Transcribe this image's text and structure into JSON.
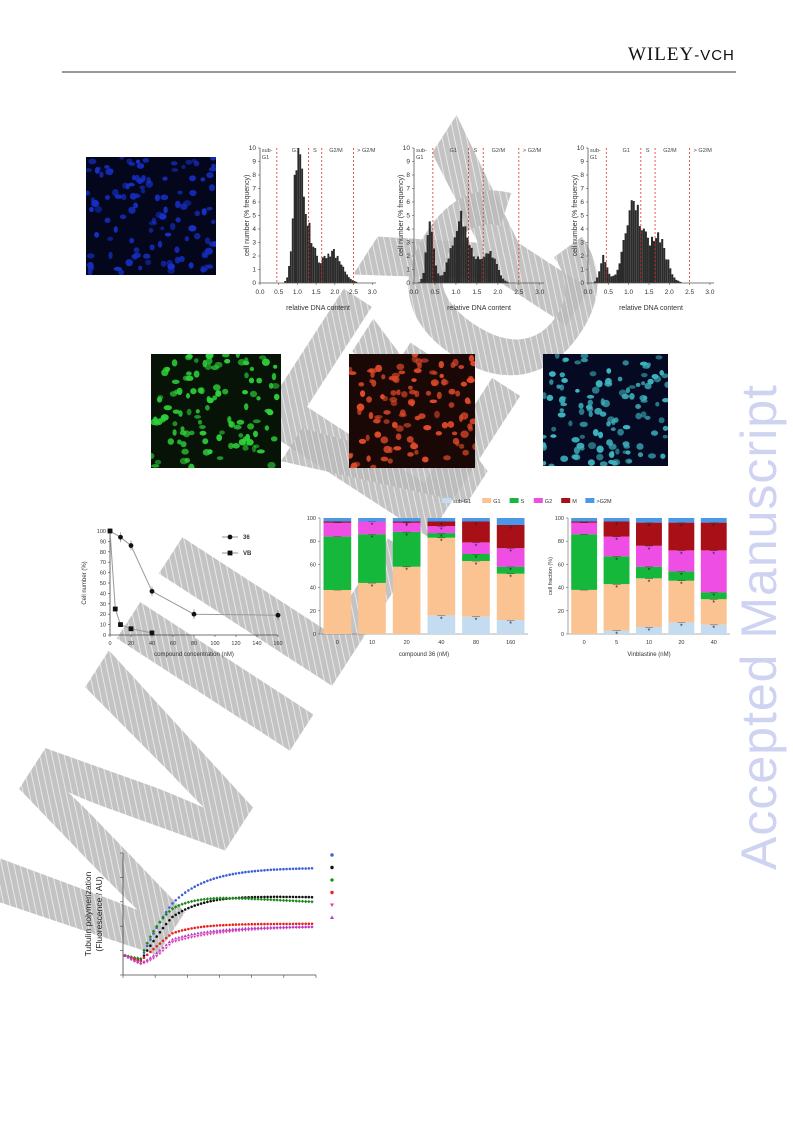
{
  "header": {
    "publisher_main": "WILEY",
    "publisher_sub": "-VCH"
  },
  "side_watermark": "Accepted Manuscript",
  "micrographs": [
    {
      "name": "dapi-micrograph",
      "color": "#1630c8",
      "bg": "#04061c"
    },
    {
      "name": "green-micrograph",
      "color": "#2ed23a",
      "bg": "#061306"
    },
    {
      "name": "red-micrograph",
      "color": "#e04a2a",
      "bg": "#1a0806"
    },
    {
      "name": "merge-micrograph",
      "color": "#3fb7c2",
      "bg": "#050a22"
    }
  ],
  "histograms": {
    "ylabel": "cell number (% frequency)",
    "xlabel": "relative DNA content",
    "xticks": [
      "0.0",
      "0.5",
      "1.0",
      "1.5",
      "2.0",
      "2.5",
      "3.0"
    ],
    "yticks": [
      "0",
      "1",
      "2",
      "3",
      "4",
      "5",
      "6",
      "7",
      "8",
      "9",
      "10"
    ],
    "gate_labels": [
      "sub-\nG1",
      "G1",
      "S",
      "G2/M",
      "> G2/M"
    ],
    "gates": [
      0.45,
      1.3,
      1.65,
      2.5
    ],
    "panels": [
      {
        "name": "histogram-control",
        "peaks": [
          [
            1.0,
            9.3,
            0.12
          ],
          [
            1.25,
            3.5,
            0.18
          ],
          [
            1.9,
            2.3,
            0.25
          ]
        ]
      },
      {
        "name": "histogram-treated-1",
        "peaks": [
          [
            0.35,
            4.0,
            0.1
          ],
          [
            1.1,
            4.7,
            0.22
          ],
          [
            1.75,
            2.3,
            0.18
          ]
        ]
      },
      {
        "name": "histogram-treated-2",
        "peaks": [
          [
            0.35,
            1.8,
            0.1
          ],
          [
            1.1,
            5.8,
            0.22
          ],
          [
            1.7,
            3.3,
            0.2
          ]
        ]
      }
    ]
  },
  "chart_data": [
    {
      "type": "line",
      "xlabel": "compound concentration (nM)",
      "ylabel": "Cell number (%)",
      "xlim": [
        0,
        160
      ],
      "ylim": [
        0,
        100
      ],
      "xticks": [
        "0",
        "20",
        "40",
        "60",
        "80",
        "100",
        "120",
        "140",
        "160"
      ],
      "yticks": [
        "0",
        "10",
        "20",
        "30",
        "40",
        "50",
        "60",
        "70",
        "80",
        "90",
        "100"
      ],
      "series": [
        {
          "name": "36",
          "marker": "circle",
          "x": [
            0,
            10,
            20,
            40,
            80,
            160
          ],
          "y": [
            100,
            94,
            86,
            42,
            20,
            19
          ]
        },
        {
          "name": "VB",
          "marker": "square",
          "x": [
            0,
            5,
            10,
            20,
            40
          ],
          "y": [
            100,
            25,
            10,
            6,
            2
          ]
        }
      ]
    },
    {
      "type": "bar",
      "stacked": true,
      "xlabel": "compound 36 (nM)",
      "ylabel": "",
      "categories": [
        "0",
        "10",
        "20",
        "40",
        "80",
        "160"
      ],
      "ylim": [
        0,
        100
      ],
      "yticks": [
        "0",
        "20",
        "40",
        "60",
        "80",
        "100"
      ],
      "legend": [
        "sub-G1",
        "G1",
        "S",
        "G2",
        "M",
        ">G2M"
      ],
      "colors": [
        "#c4dcf2",
        "#fbc391",
        "#16b83b",
        "#ee4ee4",
        "#a80f16",
        "#4b97e8"
      ],
      "series": [
        {
          "name": "sub-G1",
          "values": [
            0,
            0,
            0,
            16,
            15,
            12
          ]
        },
        {
          "name": "G1",
          "values": [
            38,
            44,
            58,
            67,
            48,
            40
          ]
        },
        {
          "name": "S",
          "values": [
            46,
            42,
            30,
            4,
            6,
            6
          ]
        },
        {
          "name": "G2",
          "values": [
            12,
            11,
            8,
            6,
            10,
            16
          ]
        },
        {
          "name": "M",
          "values": [
            1,
            0,
            1,
            4,
            18,
            20
          ]
        },
        {
          "name": ">G2M",
          "values": [
            3,
            3,
            3,
            3,
            3,
            6
          ]
        }
      ]
    },
    {
      "type": "bar",
      "stacked": true,
      "xlabel": "Vinblastine  (nM)",
      "ylabel": "cell fraction (%)",
      "categories": [
        "0",
        "5",
        "10",
        "20",
        "40"
      ],
      "ylim": [
        0,
        100
      ],
      "yticks": [
        "0",
        "20",
        "40",
        "60",
        "80",
        "100"
      ],
      "series": [
        {
          "name": "sub-G1",
          "values": [
            0,
            3,
            6,
            10,
            8
          ]
        },
        {
          "name": "G1",
          "values": [
            38,
            40,
            42,
            36,
            22
          ]
        },
        {
          "name": "S",
          "values": [
            48,
            24,
            10,
            8,
            6
          ]
        },
        {
          "name": "G2",
          "values": [
            10,
            17,
            18,
            18,
            36
          ]
        },
        {
          "name": "M",
          "values": [
            1,
            13,
            20,
            24,
            24
          ]
        },
        {
          "name": ">G2M",
          "values": [
            3,
            3,
            4,
            4,
            4
          ]
        }
      ]
    },
    {
      "type": "scatter",
      "ylabel": "Tubulin polymerization\n(Fluorescence / AU)",
      "series": [
        {
          "color": "#3a61d6",
          "marker": "circle",
          "plateau": 0.88,
          "k": 0.09,
          "dip": 0.04,
          "droop": 0.0
        },
        {
          "color": "#111111",
          "marker": "circle",
          "plateau": 0.66,
          "k": 0.1,
          "dip": 0.05,
          "droop": 0.04
        },
        {
          "color": "#1b8a1b",
          "marker": "diamond",
          "plateau": 0.64,
          "k": 0.16,
          "dip": 0.03,
          "droop": 0.08
        },
        {
          "color": "#e8231e",
          "marker": "circle",
          "plateau": 0.42,
          "k": 0.12,
          "dip": 0.05,
          "droop": 0.0
        },
        {
          "color": "#e23fa0",
          "marker": "triangle-down",
          "plateau": 0.4,
          "k": 0.06,
          "dip": 0.08,
          "droop": 0.0
        },
        {
          "color": "#b03ad6",
          "marker": "triangle-up",
          "plateau": 0.4,
          "k": 0.08,
          "dip": 0.07,
          "droop": 0.0
        }
      ]
    }
  ]
}
